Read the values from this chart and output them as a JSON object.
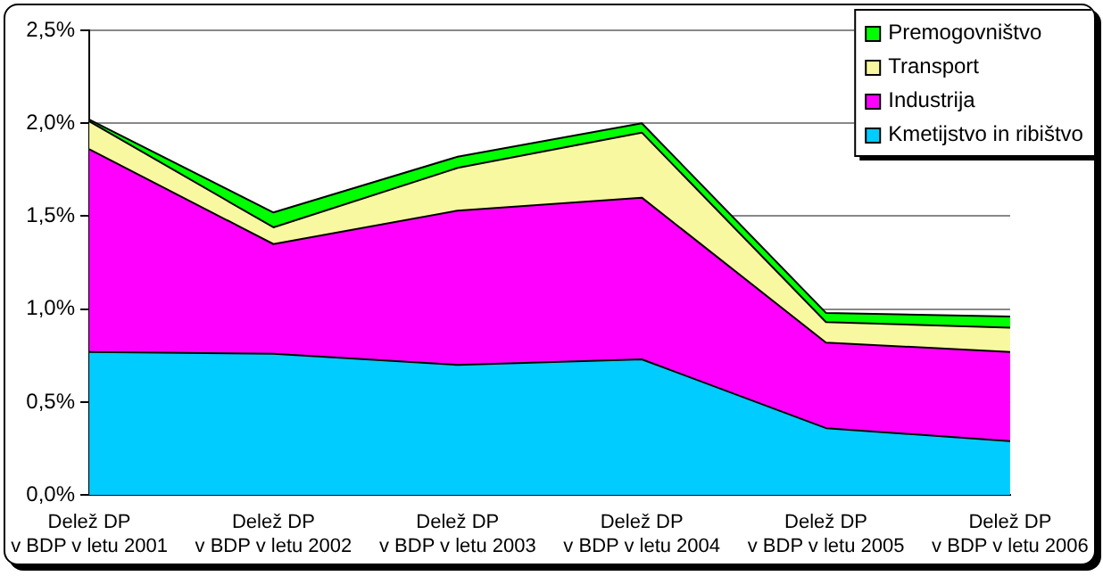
{
  "chart_data": {
    "type": "area",
    "stacked": true,
    "categories": [
      "Delež DP\nv BDP v letu 2001",
      "Delež DP\nv BDP v letu 2002",
      "Delež DP\nv BDP v letu 2003",
      "Delež DP\nv BDP v letu 2004",
      "Delež DP\nv BDP v letu 2005",
      "Delež DP\nv BDP v letu 2006"
    ],
    "series": [
      {
        "name": "Kmetijstvo in ribištvo",
        "color": "#00ccff",
        "values": [
          0.77,
          0.76,
          0.7,
          0.73,
          0.36,
          0.29
        ]
      },
      {
        "name": "Industrija",
        "color": "#ff00ff",
        "values": [
          1.09,
          0.59,
          0.83,
          0.87,
          0.46,
          0.48
        ]
      },
      {
        "name": "Transport",
        "color": "#f8f8a0",
        "values": [
          0.15,
          0.09,
          0.23,
          0.35,
          0.11,
          0.13
        ]
      },
      {
        "name": "Premogovništvo",
        "color": "#00ff00",
        "values": [
          0.01,
          0.08,
          0.06,
          0.05,
          0.05,
          0.06
        ]
      }
    ],
    "ylim": [
      0,
      2.5
    ],
    "yticks": [
      {
        "value": 0,
        "label": "0,0%"
      },
      {
        "value": 0.5,
        "label": "0,5%"
      },
      {
        "value": 1,
        "label": "1,0%"
      },
      {
        "value": 1.5,
        "label": "1,5%"
      },
      {
        "value": 2,
        "label": "2,0%"
      },
      {
        "value": 2.5,
        "label": "2,5%"
      }
    ],
    "grid": "y",
    "legend": "top right"
  }
}
